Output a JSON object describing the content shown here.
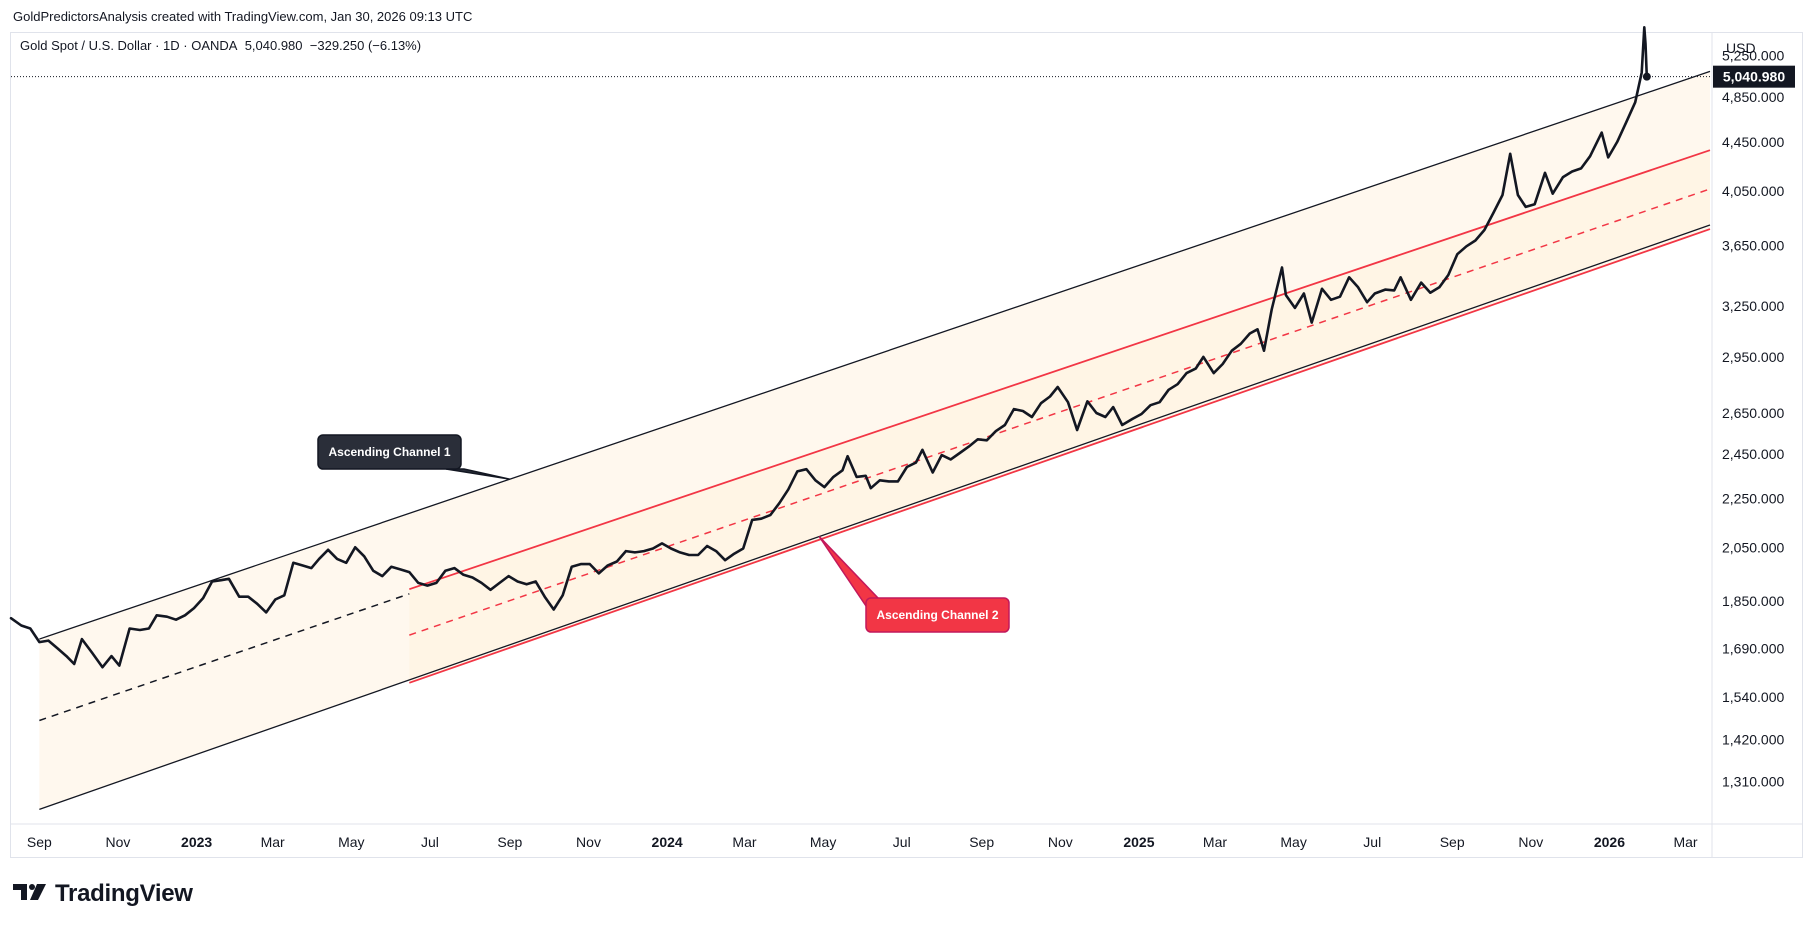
{
  "header": {
    "credit": "GoldPredictorsAnalysis created with TradingView.com, Jan 30, 2026 09:13 UTC"
  },
  "legend": {
    "symbol": "Gold Spot / U.S. Dollar · 1D · OANDA",
    "last": "5,040.980",
    "change": "−329.250 (−6.13%)"
  },
  "brand": {
    "name": "TradingView",
    "logo_icon": "tradingview-logo-icon"
  },
  "colors": {
    "price": "#131722",
    "channel1": "#131722",
    "channel2": "#f23645",
    "fill": "#fff3e0",
    "callout_dark": "#2a2e39",
    "callout_red": "#f23645"
  },
  "chart_data": {
    "type": "line",
    "title": "",
    "currency_label": "USD",
    "y_scale": "log",
    "ylim": [
      1210,
      5480
    ],
    "x_range": [
      "2022-08-10",
      "2026-03-20"
    ],
    "y_ticks": [
      {
        "value": 5250,
        "label": "5,250.000"
      },
      {
        "value": 4850,
        "label": "4,850.000"
      },
      {
        "value": 4450,
        "label": "4,450.000"
      },
      {
        "value": 4050,
        "label": "4,050.000"
      },
      {
        "value": 3650,
        "label": "3,650.000"
      },
      {
        "value": 3250,
        "label": "3,250.000"
      },
      {
        "value": 2950,
        "label": "2,950.000"
      },
      {
        "value": 2650,
        "label": "2,650.000"
      },
      {
        "value": 2450,
        "label": "2,450.000"
      },
      {
        "value": 2250,
        "label": "2,250.000"
      },
      {
        "value": 2050,
        "label": "2,050.000"
      },
      {
        "value": 1850,
        "label": "1,850.000"
      },
      {
        "value": 1690,
        "label": "1,690.000"
      },
      {
        "value": 1540,
        "label": "1,540.000"
      },
      {
        "value": 1420,
        "label": "1,420.000"
      },
      {
        "value": 1310,
        "label": "1,310.000"
      }
    ],
    "x_ticks": [
      {
        "date": "2022-09-01",
        "label": "Sep",
        "bold": false
      },
      {
        "date": "2022-11-01",
        "label": "Nov",
        "bold": false
      },
      {
        "date": "2023-01-01",
        "label": "2023",
        "bold": true
      },
      {
        "date": "2023-03-01",
        "label": "Mar",
        "bold": false
      },
      {
        "date": "2023-05-01",
        "label": "May",
        "bold": false
      },
      {
        "date": "2023-07-01",
        "label": "Jul",
        "bold": false
      },
      {
        "date": "2023-09-01",
        "label": "Sep",
        "bold": false
      },
      {
        "date": "2023-11-01",
        "label": "Nov",
        "bold": false
      },
      {
        "date": "2024-01-01",
        "label": "2024",
        "bold": true
      },
      {
        "date": "2024-03-01",
        "label": "Mar",
        "bold": false
      },
      {
        "date": "2024-05-01",
        "label": "May",
        "bold": false
      },
      {
        "date": "2024-07-01",
        "label": "Jul",
        "bold": false
      },
      {
        "date": "2024-09-01",
        "label": "Sep",
        "bold": false
      },
      {
        "date": "2024-11-01",
        "label": "Nov",
        "bold": false
      },
      {
        "date": "2025-01-01",
        "label": "2025",
        "bold": true
      },
      {
        "date": "2025-03-01",
        "label": "Mar",
        "bold": false
      },
      {
        "date": "2025-05-01",
        "label": "May",
        "bold": false
      },
      {
        "date": "2025-07-01",
        "label": "Jul",
        "bold": false
      },
      {
        "date": "2025-09-01",
        "label": "Sep",
        "bold": false
      },
      {
        "date": "2025-11-01",
        "label": "Nov",
        "bold": false
      },
      {
        "date": "2026-01-01",
        "label": "2026",
        "bold": true
      },
      {
        "date": "2026-03-01",
        "label": "Mar",
        "bold": false
      }
    ],
    "last_price": {
      "value": 5040.98,
      "label": "5,040.980"
    },
    "series": [
      {
        "color": "#131722",
        "points": [
          [
            "2022-08-10",
            1790
          ],
          [
            "2022-08-18",
            1765
          ],
          [
            "2022-08-25",
            1755
          ],
          [
            "2022-09-01",
            1710
          ],
          [
            "2022-09-08",
            1715
          ],
          [
            "2022-09-15",
            1690
          ],
          [
            "2022-09-22",
            1665
          ],
          [
            "2022-09-28",
            1640
          ],
          [
            "2022-10-04",
            1720
          ],
          [
            "2022-10-12",
            1675
          ],
          [
            "2022-10-20",
            1630
          ],
          [
            "2022-10-27",
            1665
          ],
          [
            "2022-11-02",
            1635
          ],
          [
            "2022-11-10",
            1755
          ],
          [
            "2022-11-18",
            1750
          ],
          [
            "2022-11-25",
            1755
          ],
          [
            "2022-12-01",
            1800
          ],
          [
            "2022-12-09",
            1795
          ],
          [
            "2022-12-16",
            1785
          ],
          [
            "2022-12-23",
            1800
          ],
          [
            "2022-12-30",
            1825
          ],
          [
            "2023-01-06",
            1860
          ],
          [
            "2023-01-13",
            1920
          ],
          [
            "2023-01-20",
            1925
          ],
          [
            "2023-01-26",
            1930
          ],
          [
            "2023-02-03",
            1865
          ],
          [
            "2023-02-10",
            1865
          ],
          [
            "2023-02-17",
            1840
          ],
          [
            "2023-02-24",
            1810
          ],
          [
            "2023-03-03",
            1855
          ],
          [
            "2023-03-10",
            1870
          ],
          [
            "2023-03-17",
            1990
          ],
          [
            "2023-03-24",
            1980
          ],
          [
            "2023-03-31",
            1970
          ],
          [
            "2023-04-06",
            2005
          ],
          [
            "2023-04-13",
            2040
          ],
          [
            "2023-04-20",
            2005
          ],
          [
            "2023-04-27",
            1990
          ],
          [
            "2023-05-04",
            2050
          ],
          [
            "2023-05-11",
            2015
          ],
          [
            "2023-05-18",
            1960
          ],
          [
            "2023-05-25",
            1940
          ],
          [
            "2023-06-01",
            1975
          ],
          [
            "2023-06-08",
            1965
          ],
          [
            "2023-06-15",
            1955
          ],
          [
            "2023-06-22",
            1915
          ],
          [
            "2023-06-29",
            1905
          ],
          [
            "2023-07-06",
            1915
          ],
          [
            "2023-07-13",
            1960
          ],
          [
            "2023-07-20",
            1970
          ],
          [
            "2023-07-27",
            1945
          ],
          [
            "2023-08-03",
            1935
          ],
          [
            "2023-08-10",
            1915
          ],
          [
            "2023-08-17",
            1890
          ],
          [
            "2023-08-24",
            1915
          ],
          [
            "2023-08-31",
            1940
          ],
          [
            "2023-09-07",
            1920
          ],
          [
            "2023-09-14",
            1910
          ],
          [
            "2023-09-21",
            1920
          ],
          [
            "2023-09-28",
            1865
          ],
          [
            "2023-10-05",
            1820
          ],
          [
            "2023-10-12",
            1870
          ],
          [
            "2023-10-19",
            1975
          ],
          [
            "2023-10-26",
            1985
          ],
          [
            "2023-11-02",
            1985
          ],
          [
            "2023-11-09",
            1950
          ],
          [
            "2023-11-16",
            1980
          ],
          [
            "2023-11-23",
            1995
          ],
          [
            "2023-11-30",
            2035
          ],
          [
            "2023-12-07",
            2030
          ],
          [
            "2023-12-14",
            2035
          ],
          [
            "2023-12-21",
            2045
          ],
          [
            "2023-12-28",
            2065
          ],
          [
            "2024-01-04",
            2045
          ],
          [
            "2024-01-11",
            2030
          ],
          [
            "2024-01-18",
            2020
          ],
          [
            "2024-01-25",
            2020
          ],
          [
            "2024-02-01",
            2055
          ],
          [
            "2024-02-08",
            2035
          ],
          [
            "2024-02-15",
            2000
          ],
          [
            "2024-02-22",
            2025
          ],
          [
            "2024-02-29",
            2045
          ],
          [
            "2024-03-07",
            2160
          ],
          [
            "2024-03-14",
            2165
          ],
          [
            "2024-03-21",
            2180
          ],
          [
            "2024-03-28",
            2230
          ],
          [
            "2024-04-04",
            2290
          ],
          [
            "2024-04-11",
            2370
          ],
          [
            "2024-04-18",
            2380
          ],
          [
            "2024-04-25",
            2330
          ],
          [
            "2024-05-02",
            2300
          ],
          [
            "2024-05-09",
            2345
          ],
          [
            "2024-05-16",
            2375
          ],
          [
            "2024-05-20",
            2440
          ],
          [
            "2024-05-27",
            2345
          ],
          [
            "2024-06-03",
            2350
          ],
          [
            "2024-06-07",
            2295
          ],
          [
            "2024-06-14",
            2330
          ],
          [
            "2024-06-21",
            2325
          ],
          [
            "2024-06-28",
            2325
          ],
          [
            "2024-07-05",
            2390
          ],
          [
            "2024-07-12",
            2410
          ],
          [
            "2024-07-17",
            2470
          ],
          [
            "2024-07-25",
            2365
          ],
          [
            "2024-08-01",
            2445
          ],
          [
            "2024-08-08",
            2425
          ],
          [
            "2024-08-15",
            2455
          ],
          [
            "2024-08-22",
            2485
          ],
          [
            "2024-08-29",
            2520
          ],
          [
            "2024-09-05",
            2515
          ],
          [
            "2024-09-12",
            2560
          ],
          [
            "2024-09-19",
            2590
          ],
          [
            "2024-09-26",
            2670
          ],
          [
            "2024-10-03",
            2660
          ],
          [
            "2024-10-10",
            2630
          ],
          [
            "2024-10-17",
            2700
          ],
          [
            "2024-10-24",
            2735
          ],
          [
            "2024-10-30",
            2785
          ],
          [
            "2024-11-07",
            2705
          ],
          [
            "2024-11-14",
            2565
          ],
          [
            "2024-11-22",
            2710
          ],
          [
            "2024-11-29",
            2650
          ],
          [
            "2024-12-06",
            2630
          ],
          [
            "2024-12-12",
            2680
          ],
          [
            "2024-12-19",
            2590
          ],
          [
            "2024-12-27",
            2620
          ],
          [
            "2025-01-03",
            2645
          ],
          [
            "2025-01-10",
            2690
          ],
          [
            "2025-01-17",
            2705
          ],
          [
            "2025-01-24",
            2770
          ],
          [
            "2025-01-31",
            2800
          ],
          [
            "2025-02-07",
            2860
          ],
          [
            "2025-02-14",
            2885
          ],
          [
            "2025-02-20",
            2950
          ],
          [
            "2025-02-28",
            2860
          ],
          [
            "2025-03-07",
            2910
          ],
          [
            "2025-03-14",
            2985
          ],
          [
            "2025-03-21",
            3025
          ],
          [
            "2025-03-28",
            3085
          ],
          [
            "2025-04-03",
            3110
          ],
          [
            "2025-04-08",
            2985
          ],
          [
            "2025-04-14",
            3230
          ],
          [
            "2025-04-22",
            3500
          ],
          [
            "2025-04-25",
            3320
          ],
          [
            "2025-05-02",
            3240
          ],
          [
            "2025-05-09",
            3330
          ],
          [
            "2025-05-15",
            3150
          ],
          [
            "2025-05-23",
            3360
          ],
          [
            "2025-05-30",
            3290
          ],
          [
            "2025-06-06",
            3310
          ],
          [
            "2025-06-13",
            3435
          ],
          [
            "2025-06-20",
            3370
          ],
          [
            "2025-06-27",
            3275
          ],
          [
            "2025-07-03",
            3330
          ],
          [
            "2025-07-11",
            3355
          ],
          [
            "2025-07-18",
            3350
          ],
          [
            "2025-07-23",
            3435
          ],
          [
            "2025-07-31",
            3290
          ],
          [
            "2025-08-08",
            3400
          ],
          [
            "2025-08-15",
            3335
          ],
          [
            "2025-08-22",
            3370
          ],
          [
            "2025-08-29",
            3450
          ],
          [
            "2025-09-05",
            3590
          ],
          [
            "2025-09-12",
            3645
          ],
          [
            "2025-09-19",
            3685
          ],
          [
            "2025-09-26",
            3760
          ],
          [
            "2025-10-03",
            3885
          ],
          [
            "2025-10-10",
            4020
          ],
          [
            "2025-10-16",
            4350
          ],
          [
            "2025-10-22",
            4020
          ],
          [
            "2025-10-28",
            3930
          ],
          [
            "2025-11-04",
            3950
          ],
          [
            "2025-11-12",
            4195
          ],
          [
            "2025-11-18",
            4030
          ],
          [
            "2025-11-26",
            4160
          ],
          [
            "2025-12-03",
            4205
          ],
          [
            "2025-12-10",
            4230
          ],
          [
            "2025-12-17",
            4330
          ],
          [
            "2025-12-26",
            4530
          ],
          [
            "2025-12-31",
            4320
          ],
          [
            "2026-01-07",
            4450
          ],
          [
            "2026-01-14",
            4620
          ],
          [
            "2026-01-21",
            4800
          ],
          [
            "2026-01-26",
            5080
          ],
          [
            "2026-01-28",
            5540
          ],
          [
            "2026-01-29",
            5370
          ],
          [
            "2026-01-30",
            5040.98
          ]
        ]
      }
    ],
    "channels": [
      {
        "name": "Ascending Channel 1",
        "color": "#131722",
        "start": "2022-09-01",
        "end": "2026-03-20",
        "upper": [
          1720,
          5092
        ],
        "lower": [
          1242,
          3796
        ],
        "mid": [
          1472,
          4394
        ],
        "mid_dash_end": "2023-06-15"
      },
      {
        "name": "Ascending Channel 2",
        "color": "#f23645",
        "start": "2023-06-15",
        "end": "2026-03-20",
        "upper": [
          1892,
          4380
        ],
        "lower": [
          1582,
          3767
        ],
        "mid": [
          1733,
          4067
        ]
      }
    ],
    "annotations": [
      {
        "text": "Ascending Channel 1",
        "style": "dark",
        "pointer_date": "2023-09-01"
      },
      {
        "text": "Ascending Channel 2",
        "style": "red",
        "pointer_date": "2024-04-28"
      }
    ]
  }
}
